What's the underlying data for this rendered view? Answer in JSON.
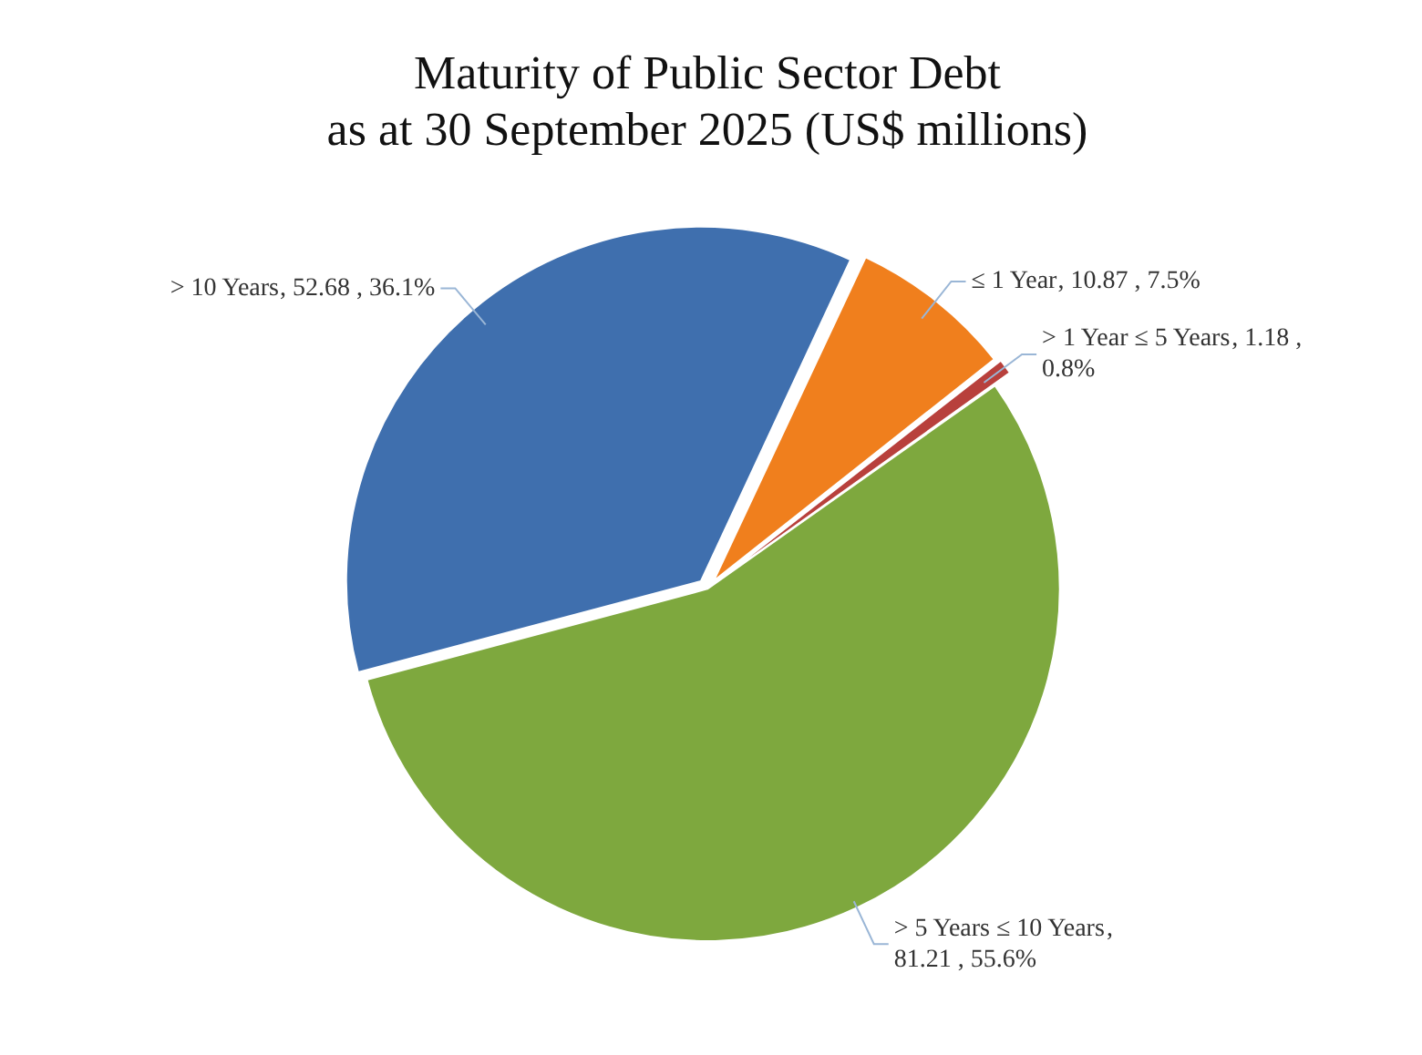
{
  "chart_data": {
    "type": "pie",
    "title": "Maturity of Public Sector Debt",
    "subtitle": "as at 30 September 2025 (US$ millions)",
    "categories": [
      "≤ 1 Year",
      "> 1 Year ≤ 5 Years",
      "> 5 Years ≤ 10 Years",
      "> 10 Years"
    ],
    "values": [
      10.87,
      1.18,
      81.21,
      52.68
    ],
    "colors": [
      "#f07f1d",
      "#b8403c",
      "#7ea83e",
      "#3f6fae"
    ],
    "value_labels": [
      ", 10.87 , 7.5%",
      ", 1.18 , 0.8%",
      ", 81.21 , 55.6%",
      ", 52.68 , 36.1%"
    ],
    "legend": false
  }
}
